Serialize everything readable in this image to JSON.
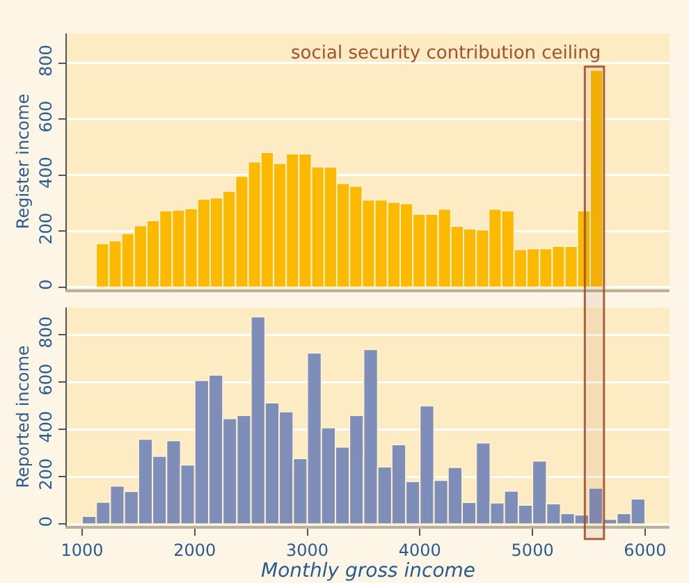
{
  "chart_data": [
    {
      "type": "histogram",
      "ylabel": "Register income",
      "color": "#fbb900",
      "bins": [
        1125,
        1237.5,
        1350,
        1462.5,
        1575,
        1687.5,
        1800,
        1912.5,
        2025,
        2137.5,
        2250,
        2362.5,
        2475,
        2587.5,
        2700,
        2812.5,
        2925,
        3037.5,
        3150,
        3262.5,
        3375,
        3487.5,
        3600,
        3712.5,
        3825,
        3937.5,
        4050,
        4162.5,
        4275,
        4387.5,
        4500,
        4612.5,
        4725,
        4837.5,
        4950,
        5062.5,
        5175,
        5287.5,
        5400,
        5512.5,
        5625
      ],
      "values": [
        156,
        166,
        192,
        220,
        238,
        273,
        276,
        281,
        315,
        319,
        343,
        396,
        448,
        481,
        442,
        476,
        476,
        430,
        429,
        371,
        361,
        312,
        312,
        304,
        299,
        261,
        261,
        279,
        218,
        209,
        205,
        279,
        273,
        135,
        138,
        138,
        146,
        146,
        273,
        775
      ],
      "xlim": [
        864,
        6217
      ],
      "xticks": [
        1000,
        2000,
        3000,
        4000,
        5000,
        6000
      ],
      "ylim": [
        -8,
        906
      ],
      "yticks": [
        0,
        200,
        400,
        600,
        800
      ],
      "grid": "y",
      "tick_labels": "y",
      "bands": [
        {
          "axis": "x",
          "from": 5465,
          "to": 5635,
          "label": "social security contribution ceiling",
          "color": "#a0522d"
        }
      ]
    },
    {
      "type": "histogram",
      "ylabel": "Reported income",
      "xlabel": "Monthly gross income",
      "color": "#7f8db9",
      "bins": [
        1000,
        1125,
        1250,
        1375,
        1500,
        1625,
        1750,
        1875,
        2000,
        2125,
        2250,
        2375,
        2500,
        2625,
        2750,
        2875,
        3000,
        3125,
        3250,
        3375,
        3500,
        3625,
        3750,
        3875,
        4000,
        4125,
        4250,
        4375,
        4500,
        4625,
        4750,
        4875,
        5000,
        5125,
        5250,
        5375,
        5500,
        5625,
        5750,
        5875,
        6000
      ],
      "values": [
        33,
        93,
        161,
        138,
        359,
        287,
        353,
        250,
        607,
        630,
        446,
        459,
        876,
        512,
        475,
        277,
        723,
        407,
        326,
        459,
        738,
        242,
        336,
        180,
        500,
        185,
        240,
        92,
        343,
        90,
        140,
        80,
        267,
        86,
        45,
        39,
        152,
        21,
        45,
        107
      ],
      "xlim": [
        864,
        6217
      ],
      "xticks": [
        1000,
        2000,
        3000,
        4000,
        5000,
        6000
      ],
      "ylim": [
        -8,
        915
      ],
      "yticks": [
        0,
        200,
        400,
        600,
        800
      ],
      "grid": "y",
      "bands": [
        {
          "axis": "x",
          "from": 5465,
          "to": 5635,
          "color": "#a0522d"
        }
      ]
    }
  ]
}
